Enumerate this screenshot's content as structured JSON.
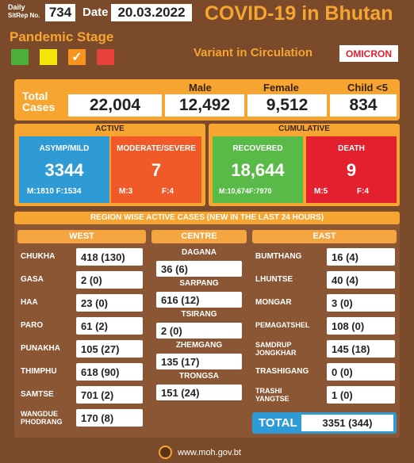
{
  "header": {
    "daily_label": "Daily",
    "sitrep_label": "SitRep No.",
    "sitrep_no": "734",
    "date_label": "Date",
    "date": "20.03.2022",
    "title": "COVID-19 in Bhutan",
    "pandemic_stage": "Pandemic Stage",
    "variant_label": "Variant in Circulation",
    "variant": "OMICRON",
    "check": "✓"
  },
  "totals": {
    "total_label": "Total Cases",
    "total_label_1": "Total",
    "total_label_2": "Cases",
    "total": "22,004",
    "male_label": "Male",
    "male": "12,492",
    "female_label": "Female",
    "female": "9,512",
    "child_label": "Child <5",
    "child": "834"
  },
  "active": {
    "title": "ACTIVE",
    "asymp_label": "ASYMP/MILD",
    "asymp": "3344",
    "asymp_m": "1810",
    "asymp_f": "1534",
    "mod_label": "MODERATE/SEVERE",
    "mod": "7",
    "mod_m": "3",
    "mod_f": "4"
  },
  "cumulative": {
    "title": "CUMULATIVE",
    "rec_label": "RECOVERED",
    "rec": "18,644",
    "rec_m": "10,674",
    "rec_f": "7970",
    "death_label": "DEATH",
    "death": "9",
    "death_m": "5",
    "death_f": "4"
  },
  "mf": {
    "m": "M:",
    "f": "F:"
  },
  "region": {
    "title": "REGION WISE ACTIVE CASES (NEW IN THE LAST 24 HOURS)",
    "west_title": "WEST",
    "centre_title": "CENTRE",
    "east_title": "EAST",
    "west": [
      {
        "name": "CHUKHA",
        "value": "418 (130)"
      },
      {
        "name": "GASA",
        "value": "2 (0)"
      },
      {
        "name": "HAA",
        "value": "23 (0)"
      },
      {
        "name": "PARO",
        "value": "61 (2)"
      },
      {
        "name": "PUNAKHA",
        "value": "105 (27)"
      },
      {
        "name": "THIMPHU",
        "value": "618 (90)"
      },
      {
        "name": "SAMTSE",
        "value": "701 (2)"
      },
      {
        "name": "WANGDUE PHODRANG",
        "name1": "WANGDUE",
        "name2": "PHODRANG",
        "value": "170 (8)"
      }
    ],
    "centre": [
      {
        "name": "DAGANA",
        "value": "36 (6)"
      },
      {
        "name": "SARPANG",
        "value": "616 (12)"
      },
      {
        "name": "TSIRANG",
        "value": "2 (0)"
      },
      {
        "name": "ZHEMGANG",
        "value": "135 (17)"
      },
      {
        "name": "TRONGSA",
        "value": "151 (24)"
      }
    ],
    "east": [
      {
        "name": "BUMTHANG",
        "value": "16 (4)"
      },
      {
        "name": "LHUNTSE",
        "value": "40 (4)"
      },
      {
        "name": "MONGAR",
        "value": "3 (0)"
      },
      {
        "name": "PEMAGATSHEL",
        "value": "108 (0)"
      },
      {
        "name": "SAMDRUP JONGKHAR",
        "name1": "SAMDRUP",
        "name2": "JONGKHAR",
        "value": "145 (18)"
      },
      {
        "name": "TRASHIGANG",
        "value": "0 (0)"
      },
      {
        "name": "TRASHI YANGTSE",
        "name1": "TRASHI",
        "name2": "YANGTSE",
        "value": "1 (0)"
      }
    ],
    "total_label": "TOTAL",
    "total_value": "3351 (344)"
  },
  "footer": {
    "url": "www.moh.gov.bt",
    "seal": "MoH"
  },
  "colors": {
    "bg": "#7a4a2a",
    "accent": "#f7a531",
    "stage_green": "#4caf3a",
    "stage_yellow": "#f5e60a",
    "stage_orange": "#f7931e",
    "stage_red": "#e8413a",
    "asymp": "#2e9bd6",
    "moderate": "#f05a28",
    "recovered": "#5aba47",
    "death": "#e5202e"
  }
}
